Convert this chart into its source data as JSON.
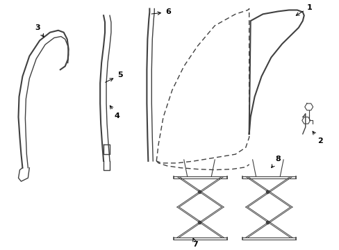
{
  "bg_color": "#ffffff",
  "line_color": "#404040",
  "fig_width": 4.89,
  "fig_height": 3.6,
  "dpi": 100
}
